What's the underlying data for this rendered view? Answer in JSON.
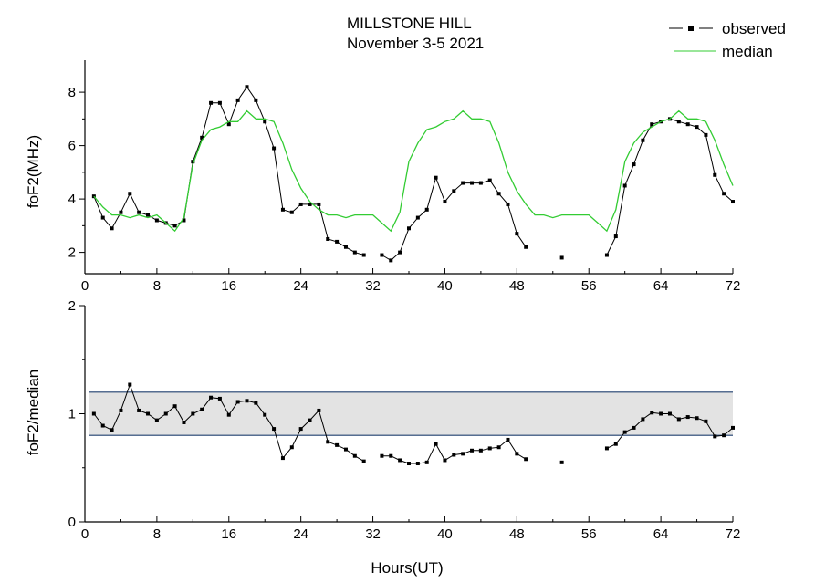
{
  "title_line1": "MILLSTONE HILL",
  "title_line2": "November 3-5 2021",
  "colors": {
    "observed": "#000000",
    "median": "#33cc33",
    "band_fill": "#e3e3e3",
    "band_edge": "#1f3f6e"
  },
  "chart_data": [
    {
      "type": "line",
      "ylabel": "foF2(MHz)",
      "xlim": [
        0,
        72
      ],
      "ylim": [
        1.2,
        9.2
      ],
      "xticks": [
        0,
        8,
        16,
        24,
        32,
        40,
        48,
        56,
        64,
        72
      ],
      "xtick_labels": [
        "0",
        "8",
        "16",
        "24",
        "32",
        "40",
        "48",
        "56",
        "64",
        "72"
      ],
      "yticks": [
        2,
        4,
        6,
        8
      ],
      "ytick_labels": [
        "2",
        "4",
        "6",
        "8"
      ],
      "legend": {
        "placement": "top-right",
        "entries": [
          "observed",
          "median"
        ]
      },
      "series": [
        {
          "name": "observed",
          "style": "line-markers",
          "points": [
            [
              1,
              4.1
            ],
            [
              2,
              3.3
            ],
            [
              3,
              2.9
            ],
            [
              4,
              3.5
            ],
            [
              5,
              4.2
            ],
            [
              6,
              3.5
            ],
            [
              7,
              3.4
            ],
            [
              8,
              3.2
            ],
            [
              9,
              3.1
            ],
            [
              10,
              3.0
            ],
            [
              11,
              3.2
            ],
            [
              12,
              5.4
            ],
            [
              13,
              6.3
            ],
            [
              14,
              7.6
            ],
            [
              15,
              7.6
            ],
            [
              16,
              6.8
            ],
            [
              17,
              7.7
            ],
            [
              18,
              8.2
            ],
            [
              19,
              7.7
            ],
            [
              20,
              6.9
            ],
            [
              21,
              5.9
            ],
            [
              22,
              3.6
            ],
            [
              23,
              3.5
            ],
            [
              24,
              3.8
            ],
            [
              25,
              3.8
            ],
            [
              26,
              3.8
            ],
            [
              27,
              2.5
            ],
            [
              28,
              2.4
            ],
            [
              29,
              2.2
            ],
            [
              30,
              2.0
            ],
            [
              31,
              1.9
            ],
            null,
            [
              33,
              1.9
            ],
            [
              34,
              1.7
            ],
            [
              35,
              2.0
            ],
            [
              36,
              2.9
            ],
            [
              37,
              3.3
            ],
            [
              38,
              3.6
            ],
            [
              39,
              4.8
            ],
            [
              40,
              3.9
            ],
            [
              41,
              4.3
            ],
            [
              42,
              4.6
            ],
            [
              43,
              4.6
            ],
            [
              44,
              4.6
            ],
            [
              45,
              4.7
            ],
            [
              46,
              4.2
            ],
            [
              47,
              3.8
            ],
            [
              48,
              2.7
            ],
            [
              49,
              2.2
            ],
            null,
            [
              53,
              1.8
            ],
            null,
            [
              58,
              1.9
            ],
            [
              59,
              2.6
            ],
            [
              60,
              4.5
            ],
            [
              61,
              5.3
            ],
            [
              62,
              6.2
            ],
            [
              63,
              6.8
            ],
            [
              64,
              6.9
            ],
            [
              65,
              7.0
            ],
            [
              66,
              6.9
            ],
            [
              67,
              6.8
            ],
            [
              68,
              6.7
            ],
            [
              69,
              6.4
            ],
            [
              70,
              4.9
            ],
            [
              71,
              4.2
            ],
            [
              72,
              3.9
            ]
          ]
        },
        {
          "name": "median",
          "style": "line",
          "points": [
            [
              1,
              4.1
            ],
            [
              2,
              3.7
            ],
            [
              3,
              3.4
            ],
            [
              4,
              3.4
            ],
            [
              5,
              3.3
            ],
            [
              6,
              3.4
            ],
            [
              7,
              3.3
            ],
            [
              8,
              3.4
            ],
            [
              9,
              3.1
            ],
            [
              10,
              2.8
            ],
            [
              11,
              3.3
            ],
            [
              12,
              5.3
            ],
            [
              13,
              6.2
            ],
            [
              14,
              6.6
            ],
            [
              15,
              6.7
            ],
            [
              16,
              6.9
            ],
            [
              17,
              6.9
            ],
            [
              18,
              7.3
            ],
            [
              19,
              7.0
            ],
            [
              20,
              7.0
            ],
            [
              21,
              6.9
            ],
            [
              22,
              6.1
            ],
            [
              23,
              5.1
            ],
            [
              24,
              4.4
            ],
            [
              25,
              3.9
            ],
            [
              26,
              3.6
            ],
            [
              27,
              3.4
            ],
            [
              28,
              3.4
            ],
            [
              29,
              3.3
            ],
            [
              30,
              3.4
            ],
            [
              31,
              3.4
            ],
            [
              32,
              3.4
            ],
            [
              33,
              3.1
            ],
            [
              34,
              2.8
            ],
            [
              35,
              3.5
            ],
            [
              36,
              5.4
            ],
            [
              37,
              6.1
            ],
            [
              38,
              6.6
            ],
            [
              39,
              6.7
            ],
            [
              40,
              6.9
            ],
            [
              41,
              7.0
            ],
            [
              42,
              7.3
            ],
            [
              43,
              7.0
            ],
            [
              44,
              7.0
            ],
            [
              45,
              6.9
            ],
            [
              46,
              6.1
            ],
            [
              47,
              5.0
            ],
            [
              48,
              4.3
            ],
            [
              49,
              3.8
            ],
            [
              50,
              3.4
            ],
            [
              51,
              3.4
            ],
            [
              52,
              3.3
            ],
            [
              53,
              3.4
            ],
            [
              54,
              3.4
            ],
            [
              55,
              3.4
            ],
            [
              56,
              3.4
            ],
            [
              57,
              3.1
            ],
            [
              58,
              2.8
            ],
            [
              59,
              3.6
            ],
            [
              60,
              5.4
            ],
            [
              61,
              6.1
            ],
            [
              62,
              6.5
            ],
            [
              63,
              6.7
            ],
            [
              64,
              6.9
            ],
            [
              65,
              7.0
            ],
            [
              66,
              7.3
            ],
            [
              67,
              7.0
            ],
            [
              68,
              7.0
            ],
            [
              69,
              6.9
            ],
            [
              70,
              6.2
            ],
            [
              71,
              5.3
            ],
            [
              72,
              4.5
            ]
          ]
        }
      ]
    },
    {
      "type": "line",
      "xlabel": "Hours(UT)",
      "ylabel": "foF2/median",
      "xlim": [
        0,
        72
      ],
      "ylim": [
        0,
        2
      ],
      "xticks": [
        0,
        8,
        16,
        24,
        32,
        40,
        48,
        56,
        64,
        72
      ],
      "xtick_labels": [
        "0",
        "8",
        "16",
        "24",
        "32",
        "40",
        "48",
        "56",
        "64",
        "72"
      ],
      "yticks": [
        0,
        1,
        2
      ],
      "ytick_labels": [
        "0",
        "1",
        "2"
      ],
      "band": {
        "lower": 0.8,
        "upper": 1.2,
        "x_range": [
          0.5,
          72
        ]
      },
      "series": [
        {
          "name": "ratio",
          "style": "line-markers",
          "points": [
            [
              1,
              1.0
            ],
            [
              2,
              0.89
            ],
            [
              3,
              0.85
            ],
            [
              4,
              1.03
            ],
            [
              5,
              1.27
            ],
            [
              6,
              1.03
            ],
            [
              7,
              1.0
            ],
            [
              8,
              0.94
            ],
            [
              9,
              1.0
            ],
            [
              10,
              1.07
            ],
            [
              11,
              0.92
            ],
            [
              12,
              1.0
            ],
            [
              13,
              1.04
            ],
            [
              14,
              1.15
            ],
            [
              15,
              1.14
            ],
            [
              16,
              0.99
            ],
            [
              17,
              1.11
            ],
            [
              18,
              1.12
            ],
            [
              19,
              1.1
            ],
            [
              20,
              0.99
            ],
            [
              21,
              0.86
            ],
            [
              22,
              0.59
            ],
            [
              23,
              0.69
            ],
            [
              24,
              0.86
            ],
            [
              25,
              0.94
            ],
            [
              26,
              1.03
            ],
            [
              27,
              0.74
            ],
            [
              28,
              0.71
            ],
            [
              29,
              0.67
            ],
            [
              30,
              0.61
            ],
            [
              31,
              0.56
            ],
            null,
            [
              33,
              0.61
            ],
            [
              34,
              0.61
            ],
            [
              35,
              0.57
            ],
            [
              36,
              0.54
            ],
            [
              37,
              0.54
            ],
            [
              38,
              0.55
            ],
            [
              39,
              0.72
            ],
            [
              40,
              0.57
            ],
            [
              41,
              0.62
            ],
            [
              42,
              0.63
            ],
            [
              43,
              0.66
            ],
            [
              44,
              0.66
            ],
            [
              45,
              0.68
            ],
            [
              46,
              0.69
            ],
            [
              47,
              0.76
            ],
            [
              48,
              0.63
            ],
            [
              49,
              0.58
            ],
            null,
            [
              53,
              0.55
            ],
            null,
            [
              58,
              0.68
            ],
            [
              59,
              0.72
            ],
            [
              60,
              0.83
            ],
            [
              61,
              0.87
            ],
            [
              62,
              0.95
            ],
            [
              63,
              1.01
            ],
            [
              64,
              1.0
            ],
            [
              65,
              1.0
            ],
            [
              66,
              0.95
            ],
            [
              67,
              0.97
            ],
            [
              68,
              0.96
            ],
            [
              69,
              0.93
            ],
            [
              70,
              0.79
            ],
            [
              71,
              0.8
            ],
            [
              72,
              0.87
            ]
          ]
        }
      ]
    }
  ]
}
